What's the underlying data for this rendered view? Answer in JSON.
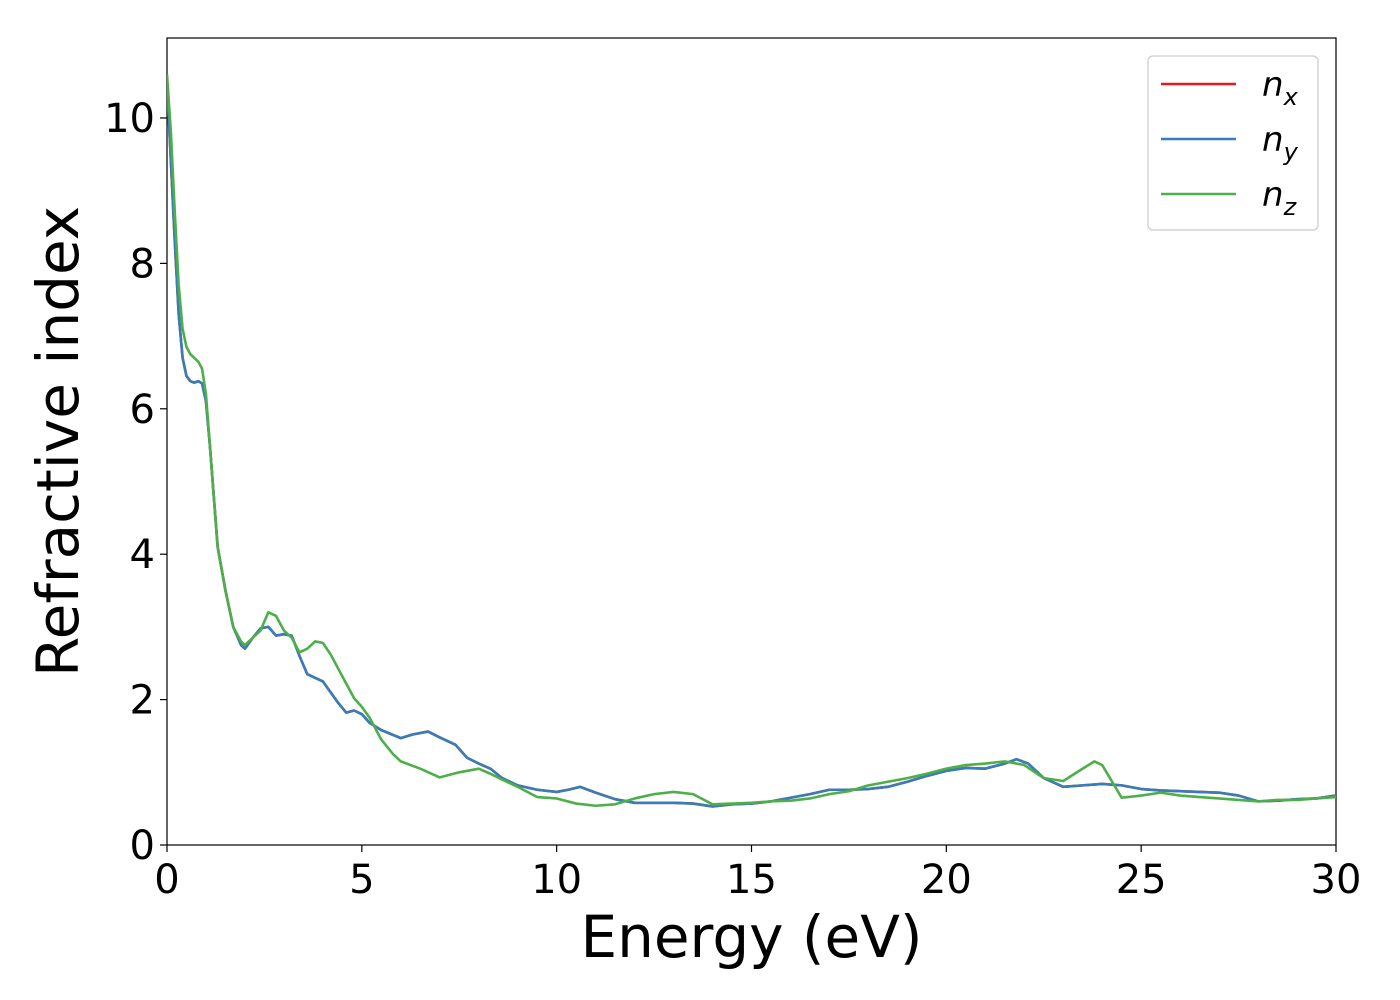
{
  "chart_data": {
    "type": "line",
    "title": "",
    "xlabel": "Energy (eV)",
    "ylabel": "Refractive index",
    "xlim": [
      0,
      30
    ],
    "ylim": [
      0,
      11.1
    ],
    "xticks": [
      0,
      5,
      10,
      15,
      20,
      25,
      30
    ],
    "yticks": [
      0,
      2,
      4,
      6,
      8,
      10
    ],
    "xtick_labels": [
      "0",
      "5",
      "10",
      "15",
      "20",
      "25",
      "30"
    ],
    "ytick_labels": [
      "0",
      "2",
      "4",
      "6",
      "8",
      "10"
    ],
    "grid": false,
    "legend_position": "top-right",
    "series": [
      {
        "name": "n",
        "subscript": "x",
        "color": "#e41a1c",
        "x": [
          0,
          0.1,
          0.2,
          0.3,
          0.4,
          0.5,
          0.6,
          0.7,
          0.8,
          0.9,
          1.0,
          1.1,
          1.2,
          1.3,
          1.5,
          1.7,
          1.9,
          2.0,
          2.2,
          2.4,
          2.6,
          2.8,
          3.0,
          3.2,
          3.4,
          3.6,
          3.8,
          4.0,
          4.2,
          4.4,
          4.6,
          4.8,
          5.0,
          5.2,
          5.5,
          6.0,
          6.3,
          6.7,
          7.0,
          7.4,
          7.7,
          8.0,
          8.3,
          8.6,
          9.0,
          9.5,
          10.0,
          10.3,
          10.6,
          11.0,
          11.5,
          12.0,
          12.5,
          13.0,
          13.5,
          14.0,
          14.5,
          15.0,
          15.5,
          16.0,
          16.5,
          17.0,
          17.5,
          18.0,
          18.5,
          19.0,
          19.5,
          20.0,
          20.5,
          21.0,
          21.5,
          21.8,
          22.1,
          22.5,
          23.0,
          23.5,
          24.0,
          24.5,
          25.0,
          25.5,
          26.0,
          26.5,
          27.0,
          27.5,
          28.0,
          28.5,
          29.0,
          29.5,
          30.0
        ],
        "y": [
          10.5,
          9.4,
          8.3,
          7.3,
          6.7,
          6.45,
          6.38,
          6.36,
          6.38,
          6.35,
          6.1,
          5.5,
          4.8,
          4.1,
          3.5,
          3.0,
          2.75,
          2.7,
          2.85,
          2.98,
          3.0,
          2.88,
          2.9,
          2.88,
          2.6,
          2.35,
          2.3,
          2.25,
          2.1,
          1.95,
          1.82,
          1.85,
          1.8,
          1.68,
          1.58,
          1.47,
          1.52,
          1.56,
          1.48,
          1.38,
          1.2,
          1.12,
          1.05,
          0.92,
          0.82,
          0.76,
          0.73,
          0.76,
          0.8,
          0.72,
          0.63,
          0.58,
          0.58,
          0.58,
          0.57,
          0.53,
          0.56,
          0.57,
          0.6,
          0.65,
          0.7,
          0.76,
          0.76,
          0.77,
          0.8,
          0.87,
          0.95,
          1.02,
          1.06,
          1.05,
          1.12,
          1.18,
          1.12,
          0.92,
          0.8,
          0.82,
          0.84,
          0.82,
          0.77,
          0.75,
          0.74,
          0.73,
          0.72,
          0.68,
          0.6,
          0.61,
          0.63,
          0.64,
          0.68
        ]
      },
      {
        "name": "n",
        "subscript": "y",
        "color": "#377eb8",
        "x": [
          0,
          0.1,
          0.2,
          0.3,
          0.4,
          0.5,
          0.6,
          0.7,
          0.8,
          0.9,
          1.0,
          1.1,
          1.2,
          1.3,
          1.5,
          1.7,
          1.9,
          2.0,
          2.2,
          2.4,
          2.6,
          2.8,
          3.0,
          3.2,
          3.4,
          3.6,
          3.8,
          4.0,
          4.2,
          4.4,
          4.6,
          4.8,
          5.0,
          5.2,
          5.5,
          6.0,
          6.3,
          6.7,
          7.0,
          7.4,
          7.7,
          8.0,
          8.3,
          8.6,
          9.0,
          9.5,
          10.0,
          10.3,
          10.6,
          11.0,
          11.5,
          12.0,
          12.5,
          13.0,
          13.5,
          14.0,
          14.5,
          15.0,
          15.5,
          16.0,
          16.5,
          17.0,
          17.5,
          18.0,
          18.5,
          19.0,
          19.5,
          20.0,
          20.5,
          21.0,
          21.5,
          21.8,
          22.1,
          22.5,
          23.0,
          23.5,
          24.0,
          24.5,
          25.0,
          25.5,
          26.0,
          26.5,
          27.0,
          27.5,
          28.0,
          28.5,
          29.0,
          29.5,
          30.0
        ],
        "y": [
          10.5,
          9.4,
          8.3,
          7.3,
          6.7,
          6.45,
          6.38,
          6.36,
          6.38,
          6.35,
          6.1,
          5.5,
          4.8,
          4.1,
          3.5,
          3.0,
          2.75,
          2.7,
          2.85,
          2.98,
          3.0,
          2.88,
          2.9,
          2.88,
          2.6,
          2.35,
          2.3,
          2.25,
          2.1,
          1.95,
          1.82,
          1.85,
          1.8,
          1.68,
          1.58,
          1.47,
          1.52,
          1.56,
          1.48,
          1.38,
          1.2,
          1.12,
          1.05,
          0.92,
          0.82,
          0.76,
          0.73,
          0.76,
          0.8,
          0.72,
          0.63,
          0.58,
          0.58,
          0.58,
          0.57,
          0.53,
          0.56,
          0.57,
          0.6,
          0.65,
          0.7,
          0.76,
          0.76,
          0.77,
          0.8,
          0.87,
          0.95,
          1.02,
          1.06,
          1.05,
          1.12,
          1.18,
          1.12,
          0.92,
          0.8,
          0.82,
          0.84,
          0.82,
          0.77,
          0.75,
          0.74,
          0.73,
          0.72,
          0.68,
          0.6,
          0.61,
          0.63,
          0.64,
          0.68
        ]
      },
      {
        "name": "n",
        "subscript": "z",
        "color": "#4daf4a",
        "x": [
          0,
          0.1,
          0.2,
          0.3,
          0.4,
          0.5,
          0.6,
          0.7,
          0.8,
          0.9,
          1.0,
          1.1,
          1.2,
          1.3,
          1.5,
          1.7,
          1.9,
          2.0,
          2.2,
          2.4,
          2.6,
          2.8,
          3.0,
          3.2,
          3.4,
          3.6,
          3.8,
          4.0,
          4.2,
          4.4,
          4.6,
          4.8,
          5.0,
          5.2,
          5.5,
          5.8,
          6.0,
          6.5,
          7.0,
          7.5,
          8.0,
          8.3,
          8.6,
          9.0,
          9.5,
          10.0,
          10.5,
          11.0,
          11.5,
          12.0,
          12.5,
          13.0,
          13.5,
          14.0,
          14.5,
          15.0,
          15.5,
          16.0,
          16.5,
          17.0,
          17.5,
          18.0,
          18.5,
          19.0,
          19.5,
          20.0,
          20.5,
          21.0,
          21.5,
          22.0,
          22.5,
          23.0,
          23.5,
          23.8,
          24.0,
          24.5,
          25.0,
          25.5,
          26.0,
          26.5,
          27.0,
          27.5,
          28.0,
          28.5,
          29.0,
          29.5,
          30.0
        ],
        "y": [
          10.6,
          9.8,
          8.7,
          7.7,
          7.1,
          6.85,
          6.75,
          6.7,
          6.65,
          6.55,
          6.2,
          5.5,
          4.8,
          4.1,
          3.5,
          3.0,
          2.8,
          2.75,
          2.85,
          2.95,
          3.2,
          3.15,
          2.95,
          2.85,
          2.65,
          2.7,
          2.8,
          2.78,
          2.62,
          2.42,
          2.22,
          2.02,
          1.9,
          1.75,
          1.45,
          1.25,
          1.15,
          1.05,
          0.93,
          1.0,
          1.05,
          0.98,
          0.9,
          0.8,
          0.66,
          0.64,
          0.57,
          0.54,
          0.56,
          0.64,
          0.7,
          0.73,
          0.7,
          0.56,
          0.57,
          0.58,
          0.6,
          0.61,
          0.64,
          0.7,
          0.74,
          0.82,
          0.87,
          0.92,
          0.98,
          1.05,
          1.1,
          1.12,
          1.15,
          1.1,
          0.92,
          0.88,
          1.05,
          1.15,
          1.1,
          0.65,
          0.68,
          0.72,
          0.68,
          0.66,
          0.64,
          0.62,
          0.6,
          0.62,
          0.62,
          0.64,
          0.66
        ]
      }
    ]
  }
}
